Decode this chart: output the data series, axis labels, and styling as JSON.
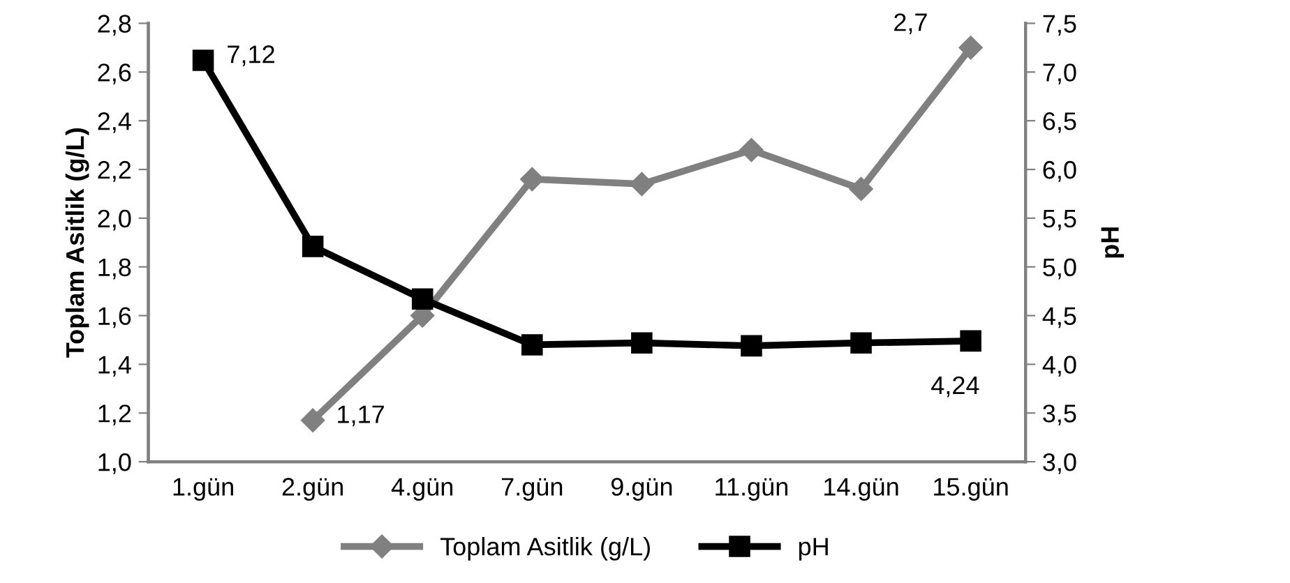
{
  "chart_data": {
    "type": "line",
    "categories": [
      "1.gün",
      "2.gün",
      "4.gün",
      "7.gün",
      "9.gün",
      "11.gün",
      "14.gün",
      "15.gün"
    ],
    "ylabel": "Toplam Asitlik (g/L)",
    "y2label": "pH",
    "ylim": [
      1.0,
      2.8
    ],
    "yticks": [
      {
        "value": 1.0,
        "label": "1,0"
      },
      {
        "value": 1.2,
        "label": "1,2"
      },
      {
        "value": 1.4,
        "label": "1,4"
      },
      {
        "value": 1.6,
        "label": "1,6"
      },
      {
        "value": 1.8,
        "label": "1,8"
      },
      {
        "value": 2.0,
        "label": "2,0"
      },
      {
        "value": 2.2,
        "label": "2,2"
      },
      {
        "value": 2.4,
        "label": "2,4"
      },
      {
        "value": 2.6,
        "label": "2,6"
      },
      {
        "value": 2.8,
        "label": "2,8"
      }
    ],
    "y2lim": [
      3.0,
      7.5
    ],
    "y2ticks": [
      {
        "value": 3.0,
        "label": "3,0"
      },
      {
        "value": 3.5,
        "label": "3,5"
      },
      {
        "value": 4.0,
        "label": "4,0"
      },
      {
        "value": 4.5,
        "label": "4,5"
      },
      {
        "value": 5.0,
        "label": "5,0"
      },
      {
        "value": 5.5,
        "label": "5,5"
      },
      {
        "value": 6.0,
        "label": "6,0"
      },
      {
        "value": 6.5,
        "label": "6,5"
      },
      {
        "value": 7.0,
        "label": "7,0"
      },
      {
        "value": 7.5,
        "label": "7,5"
      }
    ],
    "series": [
      {
        "name": "Toplam Asitlik (g/L)",
        "color": "#808080",
        "marker": "diamond",
        "values": [
          null,
          1.17,
          1.6,
          2.16,
          2.14,
          2.28,
          2.12,
          2.7
        ],
        "value_labels": [
          null,
          "1,17",
          null,
          null,
          null,
          null,
          null,
          "2,7"
        ]
      },
      {
        "name": "pH",
        "color": "#000000",
        "marker": "square",
        "axis": "y2",
        "values": [
          7.12,
          5.21,
          4.67,
          4.2,
          4.22,
          4.19,
          4.22,
          4.24
        ],
        "value_labels": [
          "7,12",
          null,
          null,
          null,
          null,
          null,
          null,
          "4,24"
        ]
      }
    ],
    "grid": false,
    "legend": "bottom"
  }
}
